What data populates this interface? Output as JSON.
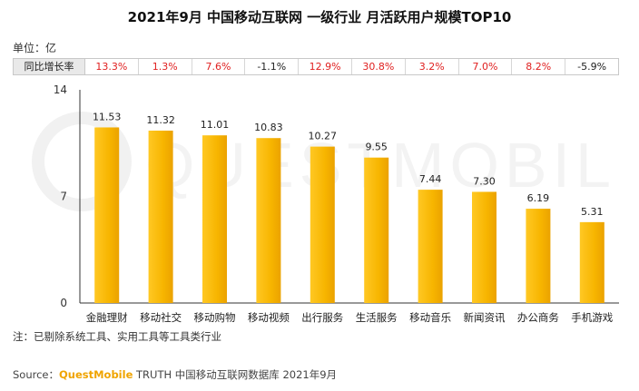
{
  "chart_data": {
    "type": "bar",
    "title": "2021年9月 中国移动互联网 一级行业 月活跃用户规模TOP10",
    "unit_label": "单位：亿",
    "categories": [
      "金融理财",
      "移动社交",
      "移动购物",
      "移动视频",
      "出行服务",
      "生活服务",
      "移动音乐",
      "新闻资讯",
      "办公商务",
      "手机游戏"
    ],
    "values": [
      11.53,
      11.32,
      11.01,
      10.83,
      10.27,
      9.55,
      7.44,
      7.3,
      6.19,
      5.31
    ],
    "ylim": [
      0,
      14
    ],
    "yticks": [
      "0",
      "7",
      "14"
    ],
    "grid": false,
    "bar_color": "#f7b500",
    "yoy_label": "同比增长率",
    "yoy": [
      "13.3%",
      "1.3%",
      "7.6%",
      "-1.1%",
      "12.9%",
      "30.8%",
      "3.2%",
      "7.0%",
      "8.2%",
      "-5.9%"
    ]
  },
  "note": "注：已剔除系统工具、实用工具等工具类行业",
  "source": {
    "prefix": "Source：",
    "brand": "QuestMobile",
    "rest": " TRUTH 中国移动互联网数据库 2021年9月"
  },
  "watermark": "QUESTMOBILE",
  "colors": {
    "accent": "#f7b500",
    "positive": "#e02020",
    "neutral": "#222222"
  }
}
